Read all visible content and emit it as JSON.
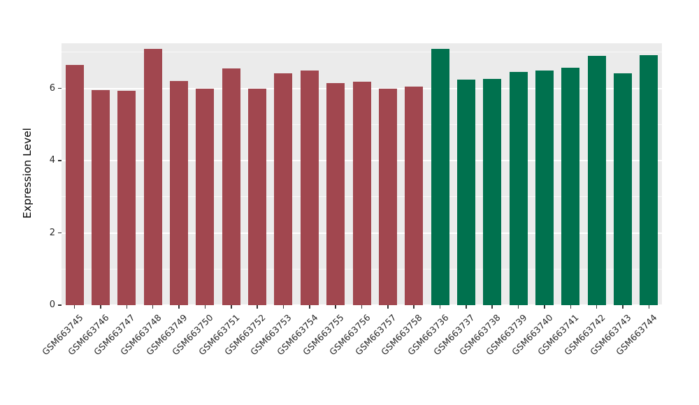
{
  "chart_data": {
    "type": "bar",
    "title": "",
    "xlabel": "",
    "ylabel": "Expression Level",
    "ylim": [
      0,
      7.25
    ],
    "yticks_major": [
      0,
      2,
      4,
      6
    ],
    "yticks_minor": [
      1,
      3,
      5,
      7
    ],
    "ytick_labels": [
      "0",
      "2",
      "4",
      "6"
    ],
    "grid": true,
    "legend": "none",
    "plot_background": "#ebebeb",
    "colors": {
      "group1": "#a1474f",
      "group2": "#00714e"
    },
    "points": [
      {
        "label": "GSM663745",
        "value": 6.65,
        "group": "group1"
      },
      {
        "label": "GSM663746",
        "value": 5.95,
        "group": "group1"
      },
      {
        "label": "GSM663747",
        "value": 5.93,
        "group": "group1"
      },
      {
        "label": "GSM663748",
        "value": 7.1,
        "group": "group1"
      },
      {
        "label": "GSM663749",
        "value": 6.2,
        "group": "group1"
      },
      {
        "label": "GSM663750",
        "value": 6.0,
        "group": "group1"
      },
      {
        "label": "GSM663751",
        "value": 6.55,
        "group": "group1"
      },
      {
        "label": "GSM663752",
        "value": 6.0,
        "group": "group1"
      },
      {
        "label": "GSM663753",
        "value": 6.42,
        "group": "group1"
      },
      {
        "label": "GSM663754",
        "value": 6.5,
        "group": "group1"
      },
      {
        "label": "GSM663755",
        "value": 6.15,
        "group": "group1"
      },
      {
        "label": "GSM663756",
        "value": 6.18,
        "group": "group1"
      },
      {
        "label": "GSM663757",
        "value": 6.0,
        "group": "group1"
      },
      {
        "label": "GSM663758",
        "value": 6.05,
        "group": "group1"
      },
      {
        "label": "GSM663736",
        "value": 7.1,
        "group": "group2"
      },
      {
        "label": "GSM663737",
        "value": 6.25,
        "group": "group2"
      },
      {
        "label": "GSM663738",
        "value": 6.27,
        "group": "group2"
      },
      {
        "label": "GSM663739",
        "value": 6.45,
        "group": "group2"
      },
      {
        "label": "GSM663740",
        "value": 6.5,
        "group": "group2"
      },
      {
        "label": "GSM663741",
        "value": 6.57,
        "group": "group2"
      },
      {
        "label": "GSM663742",
        "value": 6.9,
        "group": "group2"
      },
      {
        "label": "GSM663743",
        "value": 6.42,
        "group": "group2"
      },
      {
        "label": "GSM663744",
        "value": 6.92,
        "group": "group2"
      }
    ]
  }
}
